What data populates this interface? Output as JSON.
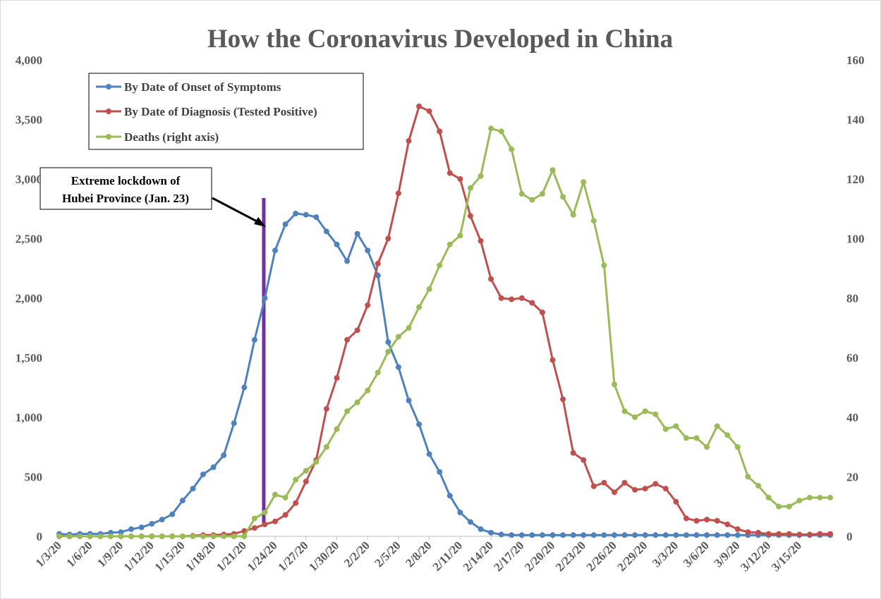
{
  "chart_data": {
    "type": "line",
    "title": "How the Coronavirus Developed in China",
    "x": [
      "1/3/20",
      "1/4/20",
      "1/5/20",
      "1/6/20",
      "1/7/20",
      "1/8/20",
      "1/9/20",
      "1/10/20",
      "1/11/20",
      "1/12/20",
      "1/13/20",
      "1/14/20",
      "1/15/20",
      "1/16/20",
      "1/17/20",
      "1/18/20",
      "1/19/20",
      "1/20/20",
      "1/21/20",
      "1/22/20",
      "1/23/20",
      "1/24/20",
      "1/25/20",
      "1/26/20",
      "1/27/20",
      "1/28/20",
      "1/29/20",
      "1/30/20",
      "1/31/20",
      "2/1/20",
      "2/2/20",
      "2/3/20",
      "2/4/20",
      "2/5/20",
      "2/6/20",
      "2/7/20",
      "2/8/20",
      "2/9/20",
      "2/10/20",
      "2/11/20",
      "2/12/20",
      "2/13/20",
      "2/14/20",
      "2/15/20",
      "2/16/20",
      "2/17/20",
      "2/18/20",
      "2/19/20",
      "2/20/20",
      "2/21/20",
      "2/22/20",
      "2/23/20",
      "2/24/20",
      "2/25/20",
      "2/26/20",
      "2/27/20",
      "2/28/20",
      "2/29/20",
      "3/1/20",
      "3/2/20",
      "3/3/20",
      "3/4/20",
      "3/5/20",
      "3/6/20",
      "3/7/20",
      "3/8/20",
      "3/9/20",
      "3/10/20",
      "3/11/20",
      "3/12/20",
      "3/13/20",
      "3/14/20",
      "3/15/20",
      "3/16/20",
      "3/17/20",
      "3/18/20"
    ],
    "x_tick_labels": [
      "1/3/20",
      "1/6/20",
      "1/9/20",
      "1/12/20",
      "1/15/20",
      "1/18/20",
      "1/21/20",
      "1/24/20",
      "1/27/20",
      "1/30/20",
      "2/2/20",
      "2/5/20",
      "2/8/20",
      "2/11/20",
      "2/14/20",
      "2/17/20",
      "2/20/20",
      "2/23/20",
      "2/26/20",
      "2/29/20",
      "3/3/20",
      "3/6/20",
      "3/9/20",
      "3/12/20",
      "3/15/20"
    ],
    "ylim": [
      0,
      4000
    ],
    "y_ticks": [
      "0",
      "500",
      "1,000",
      "1,500",
      "2,000",
      "2,500",
      "3,000",
      "3,500",
      "4,000"
    ],
    "y2lim": [
      0,
      160
    ],
    "y2_ticks": [
      "0",
      "20",
      "40",
      "60",
      "80",
      "100",
      "120",
      "140",
      "160"
    ],
    "series": [
      {
        "name": "By Date of Onset of Symptoms",
        "axis": "left",
        "color": "#4f81bd",
        "values": [
          20,
          15,
          20,
          20,
          20,
          30,
          35,
          60,
          75,
          105,
          140,
          185,
          300,
          400,
          520,
          580,
          680,
          950,
          1250,
          1650,
          2000,
          2400,
          2620,
          2710,
          2700,
          2680,
          2560,
          2450,
          2310,
          2540,
          2400,
          2190,
          1630,
          1420,
          1140,
          940,
          690,
          540,
          340,
          200,
          120,
          60,
          30,
          15,
          10,
          10,
          10,
          10,
          10,
          10,
          10,
          10,
          10,
          10,
          10,
          10,
          10,
          10,
          10,
          10,
          10,
          10,
          10,
          10,
          10,
          10,
          10,
          10,
          10,
          10,
          10,
          10,
          10,
          10,
          10,
          10
        ]
      },
      {
        "name": "By Date of Diagnosis (Tested Positive)",
        "axis": "left",
        "color": "#c0504d",
        "values": [
          0,
          0,
          0,
          0,
          0,
          0,
          0,
          0,
          0,
          0,
          0,
          0,
          0,
          5,
          10,
          10,
          15,
          20,
          45,
          70,
          100,
          125,
          180,
          280,
          460,
          640,
          1070,
          1330,
          1650,
          1730,
          1940,
          2290,
          2500,
          2880,
          3320,
          3610,
          3570,
          3400,
          3050,
          3000,
          2690,
          2480,
          2160,
          2000,
          1990,
          2000,
          1960,
          1880,
          1480,
          1150,
          700,
          640,
          420,
          450,
          370,
          450,
          390,
          400,
          440,
          400,
          290,
          150,
          130,
          140,
          130,
          100,
          60,
          35,
          30,
          20,
          20,
          20,
          15,
          15,
          20,
          20
        ]
      },
      {
        "name": "Deaths (right axis)",
        "axis": "right",
        "color": "#9bbb59",
        "values": [
          0,
          0,
          0,
          0,
          0,
          0,
          0,
          0,
          0,
          0,
          0,
          0,
          0,
          0,
          0,
          0,
          0,
          0,
          0,
          6,
          8,
          14,
          13,
          19,
          22,
          25,
          30,
          36,
          42,
          45,
          49,
          55,
          62,
          67,
          70,
          77,
          83,
          91,
          98,
          101,
          117,
          121,
          137,
          136,
          130,
          115,
          113,
          115,
          123,
          114,
          108,
          119,
          106,
          91,
          51,
          42,
          40,
          42,
          41,
          36,
          37,
          33,
          33,
          30,
          37,
          34,
          30,
          20,
          17,
          13,
          10,
          10,
          12,
          13,
          13,
          13
        ]
      }
    ],
    "legend": "top-left",
    "annotation": {
      "text_line1": "Extreme lockdown of",
      "text_line2": "Hubei Province (Jan. 23)",
      "marker_date": "1/23/20",
      "marker_color": "#7030a0"
    },
    "grid": false
  }
}
